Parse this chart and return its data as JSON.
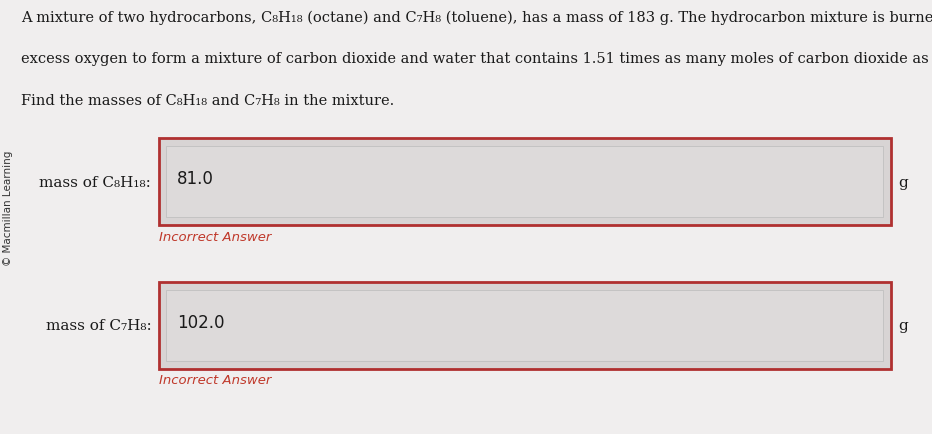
{
  "background_color": "#f0eeee",
  "sidebar_color": "#e0dcdc",
  "sidebar_text": "© Macmillan Learning",
  "problem_text_line1": "A mixture of two hydrocarbons, C₈H₁₈ (octane) and C₇H₈ (toluene), has a mass of 183 g. The hydrocarbon mixture is burned in",
  "problem_text_line2": "excess oxygen to form a mixture of carbon dioxide and water that contains 1.51 times as many moles of carbon dioxide as water.",
  "problem_text_line3": "Find the masses of C₈H₁₈ and C₇H₈ in the mixture.",
  "label1": "mass of C₈H₁₈:",
  "value1": "81.0",
  "unit1": "g",
  "feedback1": "Incorrect Answer",
  "label2": "mass of C₇H₈:",
  "value2": "102.0",
  "unit2": "g",
  "feedback2": "Incorrect Answer",
  "box_border_color": "#b03030",
  "inner_box_color": "#dddada",
  "outer_box_color": "#d8d4d4",
  "feedback_color": "#c0392b",
  "text_color": "#1a1a1a",
  "font_size_problem": 10.5,
  "font_size_label": 11,
  "font_size_value": 12,
  "font_size_feedback": 9.5,
  "font_size_sidebar": 7.5
}
